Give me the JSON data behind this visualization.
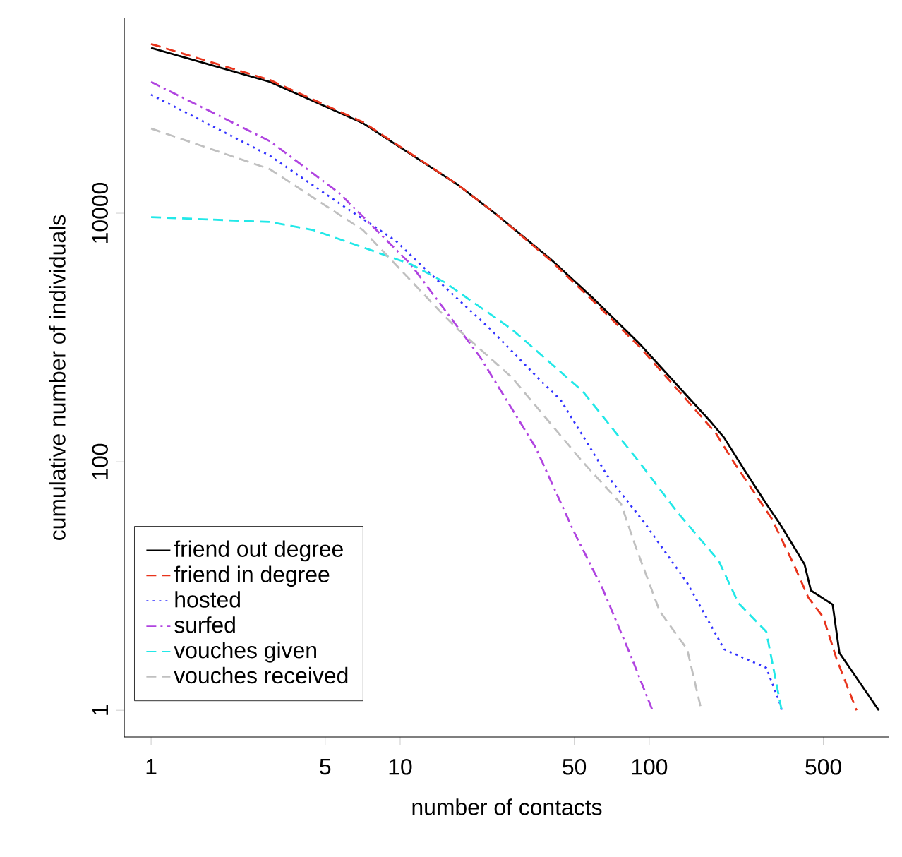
{
  "chart_data": {
    "type": "line",
    "xlabel": "number of contacts",
    "ylabel": "cumulative number of individuals",
    "log": "xy",
    "grid": false,
    "legend": "bottom left",
    "xlim": [
      0.78,
      920
    ],
    "ylim": [
      0.61,
      370000
    ],
    "xticks": [
      1,
      5,
      10,
      50,
      100,
      500
    ],
    "yticks": [
      1,
      100,
      10000
    ],
    "series": [
      {
        "name": "friend out degree",
        "color": "#000000",
        "line_style": "solid",
        "x": [
          1,
          3,
          7.1,
          17,
          24,
          40,
          59,
          91,
          130,
          175,
          200,
          240,
          295,
          337,
          420,
          446,
          545,
          580,
          835
        ],
        "values": [
          214000,
          114000,
          53000,
          17000,
          10000,
          4300,
          2100,
          900,
          410,
          214,
          156,
          87,
          46,
          31,
          15,
          9.2,
          7.1,
          2.9,
          1
        ]
      },
      {
        "name": "friend in degree",
        "color": "#e8341c",
        "line_style": "dashed",
        "x": [
          1,
          3,
          7.1,
          17,
          24,
          40,
          59,
          91,
          130,
          185,
          218,
          310,
          380,
          435,
          500,
          565,
          680
        ],
        "values": [
          230000,
          118000,
          54000,
          17000,
          10000,
          4200,
          2000,
          850,
          380,
          170,
          100,
          35,
          15,
          8.1,
          5.6,
          2.6,
          1
        ]
      },
      {
        "name": "hosted",
        "color": "#3333ff",
        "line_style": "dotted",
        "x": [
          1,
          3,
          5.7,
          9.6,
          12,
          23,
          37,
          44,
          68,
          96,
          142,
          200,
          295,
          337,
          340
        ],
        "values": [
          90000,
          29000,
          12000,
          6000,
          3900,
          1170,
          440,
          316,
          77,
          32,
          10.6,
          3.1,
          2.2,
          1.1,
          1
        ]
      },
      {
        "name": "surfed",
        "color": "#b044e0",
        "line_style": "dashdot",
        "x": [
          1,
          3,
          5.7,
          11,
          21,
          35,
          50,
          65,
          84,
          103
        ],
        "values": [
          114000,
          38000,
          14500,
          3900,
          690,
          130,
          27,
          9.5,
          2.8,
          1
        ]
      },
      {
        "name": "vouches given",
        "color": "#22e8e8",
        "line_style": "dashed",
        "x": [
          1,
          3,
          4.5,
          11,
          15,
          28,
          54,
          91,
          130,
          190,
          228,
          295,
          323,
          340
        ],
        "values": [
          9300,
          8500,
          7300,
          3900,
          2800,
          1170,
          370,
          100,
          39,
          16,
          7.3,
          4.3,
          1.7,
          1
        ]
      },
      {
        "name": "vouches received",
        "color": "#c0c0c0",
        "line_style": "dashed",
        "x": [
          1,
          3,
          7.1,
          15,
          17,
          28,
          54,
          77,
          88,
          110,
          142,
          162
        ],
        "values": [
          48000,
          22600,
          7300,
          1500,
          1170,
          480,
          100,
          46,
          21,
          6.3,
          3.1,
          1
        ]
      }
    ]
  }
}
